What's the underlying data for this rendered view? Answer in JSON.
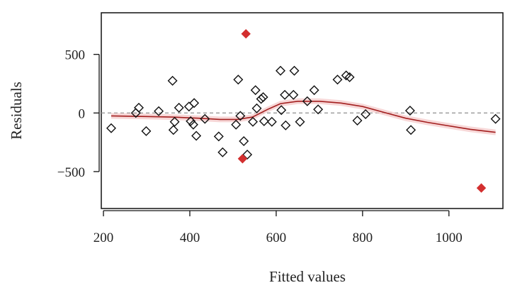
{
  "chart_data": {
    "type": "scatter",
    "xlabel": "Fitted values",
    "ylabel": "Residuals",
    "xlim": [
      195,
      1125
    ],
    "ylim": [
      -815,
      855
    ],
    "xticks": [
      200,
      400,
      600,
      800,
      1000
    ],
    "xtick_labels": [
      "200",
      "400",
      "600",
      "800",
      "1000"
    ],
    "yticks": [
      -500,
      0,
      500
    ],
    "ytick_labels": [
      "−500",
      "0",
      "500"
    ],
    "zero_reference_line": 0,
    "grid": false,
    "legend": "none",
    "series": [
      {
        "marker": "open-diamond",
        "color": "#111111",
        "points": [
          [
            218,
            -130
          ],
          [
            275,
            0
          ],
          [
            282,
            45
          ],
          [
            299,
            -155
          ],
          [
            328,
            15
          ],
          [
            360,
            275
          ],
          [
            362,
            -145
          ],
          [
            365,
            -75
          ],
          [
            375,
            45
          ],
          [
            398,
            55
          ],
          [
            402,
            -70
          ],
          [
            408,
            -100
          ],
          [
            410,
            85
          ],
          [
            415,
            -195
          ],
          [
            435,
            -50
          ],
          [
            467,
            -200
          ],
          [
            476,
            -335
          ],
          [
            507,
            -100
          ],
          [
            512,
            285
          ],
          [
            517,
            -25
          ],
          [
            525,
            -240
          ],
          [
            533,
            -355
          ],
          [
            546,
            -75
          ],
          [
            552,
            195
          ],
          [
            555,
            40
          ],
          [
            565,
            120
          ],
          [
            570,
            135
          ],
          [
            572,
            -70
          ],
          [
            590,
            -75
          ],
          [
            610,
            360
          ],
          [
            612,
            25
          ],
          [
            620,
            155
          ],
          [
            622,
            -105
          ],
          [
            640,
            155
          ],
          [
            642,
            360
          ],
          [
            655,
            -75
          ],
          [
            672,
            100
          ],
          [
            688,
            195
          ],
          [
            697,
            30
          ],
          [
            742,
            285
          ],
          [
            762,
            320
          ],
          [
            770,
            305
          ],
          [
            788,
            -65
          ],
          [
            807,
            -10
          ],
          [
            910,
            20
          ],
          [
            912,
            -145
          ],
          [
            1108,
            -50
          ]
        ]
      },
      {
        "marker": "filled-diamond",
        "color": "#d32f2f",
        "points": [
          [
            530,
            675
          ],
          [
            522,
            -390
          ],
          [
            1075,
            -640
          ]
        ]
      }
    ],
    "smooth_line": {
      "color": "#a31f1f",
      "band_color": "#f3c6c6",
      "points": [
        [
          218,
          -25
        ],
        [
          300,
          -30
        ],
        [
          360,
          -35
        ],
        [
          420,
          -45
        ],
        [
          470,
          -55
        ],
        [
          510,
          -55
        ],
        [
          545,
          -35
        ],
        [
          580,
          30
        ],
        [
          610,
          80
        ],
        [
          650,
          100
        ],
        [
          700,
          100
        ],
        [
          750,
          85
        ],
        [
          800,
          55
        ],
        [
          850,
          5
        ],
        [
          900,
          -45
        ],
        [
          950,
          -80
        ],
        [
          1000,
          -110
        ],
        [
          1050,
          -140
        ],
        [
          1108,
          -165
        ]
      ]
    }
  }
}
